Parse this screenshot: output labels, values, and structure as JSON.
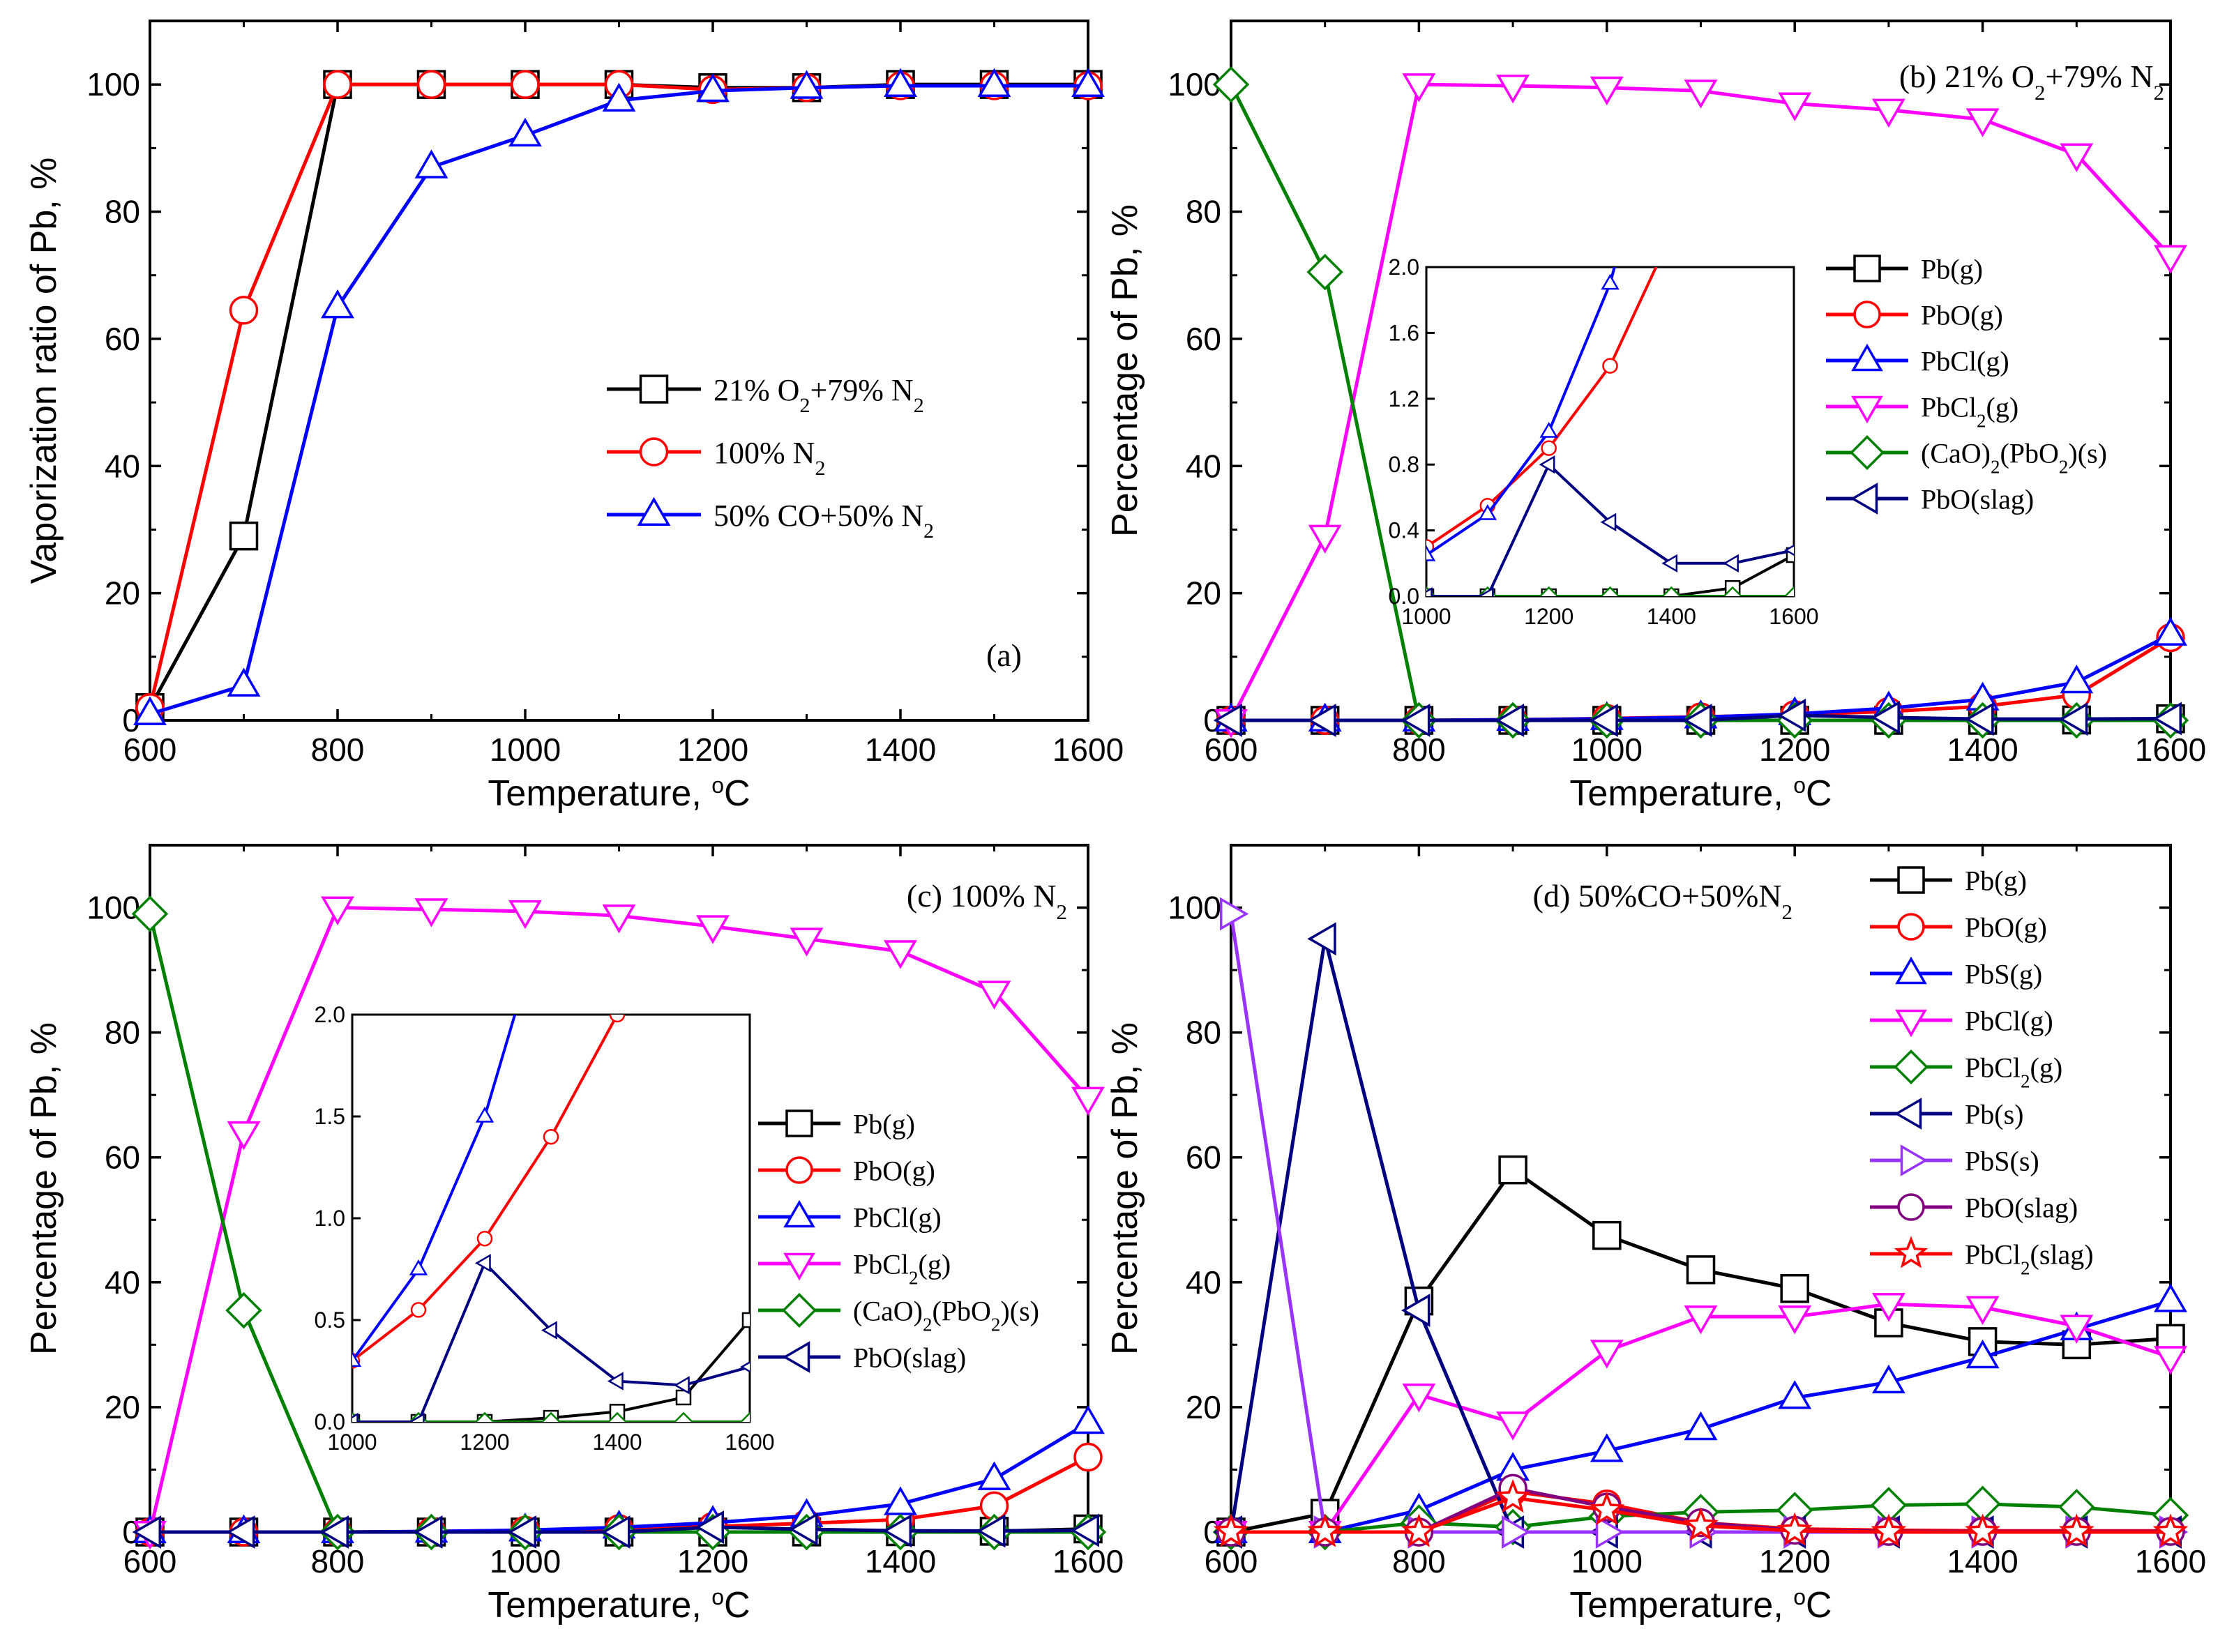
{
  "figure_labels": [
    "(a)",
    "(b) 21% O₂+79% N₂",
    "(c) 100% N₂",
    "(d) 50%CO+50%N₂"
  ],
  "chart_data": [
    {
      "id": "a",
      "type": "line",
      "label": "(a)",
      "xlabel": "Temperature, °C",
      "ylabel": "Vaporization ratio of Pb, %",
      "xlim": [
        600,
        1600
      ],
      "ylim": [
        0,
        110
      ],
      "xticks": [
        600,
        800,
        1000,
        1200,
        1400,
        1600
      ],
      "yticks": [
        0,
        20,
        40,
        60,
        80,
        100
      ],
      "legend_position": "center-right",
      "series": [
        {
          "name": "21% O₂+79% N₂",
          "color": "#000000",
          "marker": "square",
          "x": [
            600,
            700,
            800,
            900,
            1000,
            1100,
            1200,
            1300,
            1400,
            1500,
            1600
          ],
          "y": [
            2,
            29,
            100,
            100,
            100,
            100,
            99.5,
            99.5,
            100,
            100,
            100
          ]
        },
        {
          "name": "100% N₂",
          "color": "#ff0000",
          "marker": "circle",
          "x": [
            600,
            700,
            800,
            900,
            1000,
            1100,
            1200,
            1300,
            1400,
            1500,
            1600
          ],
          "y": [
            2,
            64.5,
            100,
            100,
            100,
            100,
            99.2,
            99.5,
            99.8,
            99.8,
            99.8
          ]
        },
        {
          "name": "50% CO+50% N₂",
          "color": "#0000ff",
          "marker": "triangle-up",
          "x": [
            600,
            700,
            800,
            900,
            1000,
            1100,
            1200,
            1300,
            1400,
            1500,
            1600
          ],
          "y": [
            1,
            5.5,
            65,
            87,
            92,
            97.5,
            99,
            99.5,
            99.8,
            99.8,
            99.8
          ]
        }
      ]
    },
    {
      "id": "b",
      "type": "line",
      "label": "(b) 21% O₂+79% N₂",
      "xlabel": "Temperature, °C",
      "ylabel": "Percentage of Pb, %",
      "xlim": [
        600,
        1600
      ],
      "ylim": [
        0,
        110
      ],
      "xticks": [
        600,
        800,
        1000,
        1200,
        1400,
        1600
      ],
      "yticks": [
        0,
        20,
        40,
        60,
        80,
        100
      ],
      "legend_position": "right",
      "series": [
        {
          "name": "Pb(g)",
          "color": "#000000",
          "marker": "square",
          "x": [
            600,
            700,
            800,
            900,
            1000,
            1100,
            1200,
            1300,
            1400,
            1500,
            1600
          ],
          "y": [
            0,
            0,
            0,
            0,
            0,
            0,
            0,
            0,
            0,
            0.05,
            0.25
          ]
        },
        {
          "name": "PbO(g)",
          "color": "#ff0000",
          "marker": "circle",
          "x": [
            600,
            700,
            800,
            900,
            1000,
            1100,
            1200,
            1300,
            1400,
            1500,
            1600
          ],
          "y": [
            0,
            0,
            0,
            0.1,
            0.3,
            0.55,
            0.9,
            1.4,
            2.2,
            4.0,
            13.0
          ]
        },
        {
          "name": "PbCl(g)",
          "color": "#0000ff",
          "marker": "triangle-up",
          "x": [
            600,
            700,
            800,
            900,
            1000,
            1100,
            1200,
            1300,
            1400,
            1500,
            1600
          ],
          "y": [
            0,
            0,
            0,
            0.1,
            0.25,
            0.5,
            1.0,
            1.9,
            3.3,
            6.0,
            13.5
          ]
        },
        {
          "name": "PbCl₂(g)",
          "color": "#ff00ff",
          "marker": "triangle-down",
          "x": [
            600,
            700,
            800,
            900,
            1000,
            1100,
            1200,
            1300,
            1400,
            1500,
            1600
          ],
          "y": [
            0,
            29,
            100,
            99.8,
            99.5,
            99,
            97,
            96,
            94.5,
            89,
            73
          ]
        },
        {
          "name": "(CaO)₂(PbO₂)(s)",
          "color": "#008000",
          "marker": "diamond",
          "x": [
            600,
            700,
            800,
            900,
            1000,
            1100,
            1200,
            1300,
            1400,
            1500,
            1600
          ],
          "y": [
            100,
            70.5,
            0,
            0,
            0,
            0,
            0,
            0,
            0,
            0,
            0
          ]
        },
        {
          "name": "PbO(slag)",
          "color": "#000080",
          "marker": "triangle-left",
          "x": [
            600,
            700,
            800,
            900,
            1000,
            1100,
            1200,
            1300,
            1400,
            1500,
            1600
          ],
          "y": [
            0,
            0,
            0,
            0,
            0,
            0,
            0.8,
            0.45,
            0.2,
            0.2,
            0.28
          ]
        }
      ],
      "inset": {
        "xlim": [
          1000,
          1600
        ],
        "ylim": [
          0,
          2.0
        ],
        "xticks": [
          1000,
          1200,
          1400,
          1600
        ],
        "yticks": [
          0.0,
          0.4,
          0.8,
          1.2,
          1.6,
          2.0
        ],
        "ytick_labels": [
          "0.0",
          "0.4",
          "0.8",
          "1.2",
          "1.6",
          "2.0"
        ]
      }
    },
    {
      "id": "c",
      "type": "line",
      "label": "(c) 100% N₂",
      "xlabel": "Temperature, °C",
      "ylabel": "Percentage of Pb, %",
      "xlim": [
        600,
        1600
      ],
      "ylim": [
        0,
        110
      ],
      "xticks": [
        600,
        800,
        1000,
        1200,
        1400,
        1600
      ],
      "yticks": [
        0,
        20,
        40,
        60,
        80,
        100
      ],
      "legend_position": "right",
      "series": [
        {
          "name": "Pb(g)",
          "color": "#000000",
          "marker": "square",
          "x": [
            600,
            700,
            800,
            900,
            1000,
            1100,
            1200,
            1300,
            1400,
            1500,
            1600
          ],
          "y": [
            0,
            0,
            0,
            0,
            0,
            0,
            0,
            0.02,
            0.05,
            0.12,
            0.5
          ]
        },
        {
          "name": "PbO(g)",
          "color": "#ff0000",
          "marker": "circle",
          "x": [
            600,
            700,
            800,
            900,
            1000,
            1100,
            1200,
            1300,
            1400,
            1500,
            1600
          ],
          "y": [
            0,
            0,
            0,
            0.1,
            0.3,
            0.55,
            0.9,
            1.4,
            2.0,
            4.2,
            12.0
          ]
        },
        {
          "name": "PbCl(g)",
          "color": "#0000ff",
          "marker": "triangle-up",
          "x": [
            600,
            700,
            800,
            900,
            1000,
            1100,
            1200,
            1300,
            1400,
            1500,
            1600
          ],
          "y": [
            0,
            0,
            0,
            0.1,
            0.3,
            0.75,
            1.5,
            2.6,
            4.5,
            8.5,
            17.5
          ]
        },
        {
          "name": "PbCl₂(g)",
          "color": "#ff00ff",
          "marker": "triangle-down",
          "x": [
            600,
            700,
            800,
            900,
            1000,
            1100,
            1200,
            1300,
            1400,
            1500,
            1600
          ],
          "y": [
            0,
            64,
            100,
            99.7,
            99.4,
            98.7,
            97,
            95,
            93,
            86.5,
            69.5
          ]
        },
        {
          "name": "(CaO)₂(PbO₂)(s)",
          "color": "#008000",
          "marker": "diamond",
          "x": [
            600,
            700,
            800,
            900,
            1000,
            1100,
            1200,
            1300,
            1400,
            1500,
            1600
          ],
          "y": [
            99,
            35.5,
            0,
            0,
            0,
            0,
            0,
            0,
            0,
            0,
            0
          ]
        },
        {
          "name": "PbO(slag)",
          "color": "#000080",
          "marker": "triangle-left",
          "x": [
            600,
            700,
            800,
            900,
            1000,
            1100,
            1200,
            1300,
            1400,
            1500,
            1600
          ],
          "y": [
            0,
            0,
            0,
            0,
            0,
            0,
            0.78,
            0.45,
            0.2,
            0.18,
            0.27
          ]
        }
      ],
      "inset": {
        "xlim": [
          1000,
          1600
        ],
        "ylim": [
          0,
          2.0
        ],
        "xticks": [
          1000,
          1200,
          1400,
          1600
        ],
        "yticks": [
          0.0,
          0.5,
          1.0,
          1.5,
          2.0
        ],
        "ytick_labels": [
          "0.0",
          "0.5",
          "1.0",
          "1.5",
          "2.0"
        ]
      }
    },
    {
      "id": "d",
      "type": "line",
      "label": "(d) 50%CO+50%N₂",
      "xlabel": "Temperature, °C",
      "ylabel": "Percentage of Pb, %",
      "xlim": [
        600,
        1600
      ],
      "ylim": [
        0,
        110
      ],
      "xticks": [
        600,
        800,
        1000,
        1200,
        1400,
        1600
      ],
      "yticks": [
        0,
        20,
        40,
        60,
        80,
        100
      ],
      "legend_position": "top-right",
      "series": [
        {
          "name": "Pb(g)",
          "color": "#000000",
          "marker": "square",
          "x": [
            600,
            700,
            800,
            900,
            1000,
            1100,
            1200,
            1300,
            1400,
            1500,
            1600
          ],
          "y": [
            0,
            3,
            37,
            58,
            47.5,
            42,
            39,
            33.5,
            30.5,
            30,
            31
          ]
        },
        {
          "name": "PbO(g)",
          "color": "#ff0000",
          "marker": "circle",
          "x": [
            600,
            700,
            800,
            900,
            1000,
            1100,
            1200,
            1300,
            1400,
            1500,
            1600
          ],
          "y": [
            0,
            0,
            0,
            6.5,
            4.5,
            1.5,
            0.5,
            0.3,
            0.2,
            0.2,
            0.2
          ]
        },
        {
          "name": "PbS(g)",
          "color": "#0000ff",
          "marker": "triangle-up",
          "x": [
            600,
            700,
            800,
            900,
            1000,
            1100,
            1200,
            1300,
            1400,
            1500,
            1600
          ],
          "y": [
            0,
            0,
            3.5,
            10,
            13,
            16.5,
            21.5,
            24,
            28,
            32.5,
            37
          ]
        },
        {
          "name": "PbCl(g)",
          "color": "#ff00ff",
          "marker": "triangle-down",
          "x": [
            600,
            700,
            800,
            900,
            1000,
            1100,
            1200,
            1300,
            1400,
            1500,
            1600
          ],
          "y": [
            0,
            0,
            22,
            17.5,
            29,
            34.5,
            34.5,
            36.5,
            36,
            33,
            28
          ]
        },
        {
          "name": "PbCl₂(g)",
          "color": "#008000",
          "marker": "diamond",
          "x": [
            600,
            700,
            800,
            900,
            1000,
            1100,
            1200,
            1300,
            1400,
            1500,
            1600
          ],
          "y": [
            0,
            0,
            1.5,
            0.8,
            2.5,
            3.2,
            3.5,
            4.3,
            4.5,
            4,
            2.7
          ]
        },
        {
          "name": "Pb(s)",
          "color": "#000080",
          "marker": "triangle-left",
          "x": [
            600,
            700,
            800,
            900,
            1000,
            1100,
            1200,
            1300,
            1400,
            1500,
            1600
          ],
          "y": [
            0,
            95,
            35.5,
            0,
            0,
            0,
            0,
            0,
            0,
            0,
            0
          ]
        },
        {
          "name": "PbS(s)",
          "color": "#9933ff",
          "marker": "triangle-right",
          "x": [
            600,
            700,
            800,
            900,
            1000,
            1100,
            1200,
            1300,
            1400,
            1500,
            1600
          ],
          "y": [
            99,
            0,
            0,
            0,
            0,
            0,
            0,
            0,
            0,
            0,
            0
          ]
        },
        {
          "name": "PbO(slag)",
          "color": "#800080",
          "marker": "circle",
          "x": [
            600,
            700,
            800,
            900,
            1000,
            1100,
            1200,
            1300,
            1400,
            1500,
            1600
          ],
          "y": [
            0,
            0,
            0,
            7,
            4,
            1.5,
            0.3,
            0.1,
            0.1,
            0.1,
            0.1
          ]
        },
        {
          "name": "PbCl₂(slag)",
          "color": "#ff0000",
          "marker": "star",
          "x": [
            600,
            700,
            800,
            900,
            1000,
            1100,
            1200,
            1300,
            1400,
            1500,
            1600
          ],
          "y": [
            0,
            0,
            0,
            5.5,
            3.5,
            1.0,
            0.2,
            0,
            0,
            0,
            0
          ]
        }
      ]
    }
  ]
}
